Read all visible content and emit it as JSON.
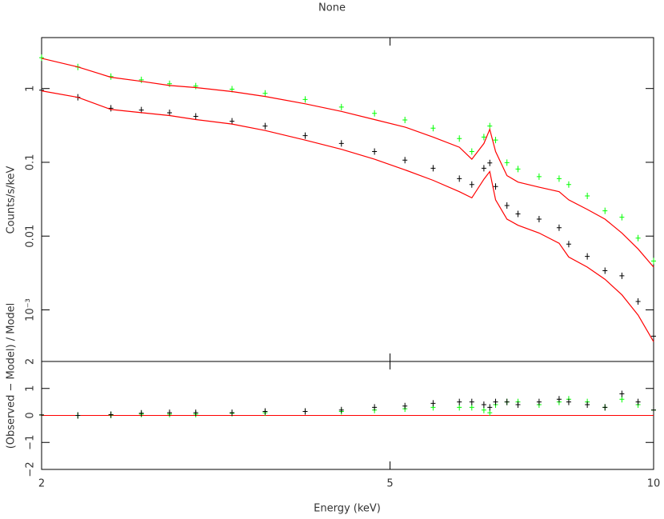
{
  "chart_data": [
    {
      "type": "scatter",
      "title": "None",
      "ylabel": "Counts/s/keV",
      "xlog": true,
      "ylog": true,
      "x": [
        2.0,
        2.2,
        2.4,
        2.6,
        2.8,
        3.0,
        3.3,
        3.6,
        4.0,
        4.4,
        4.8,
        5.2,
        5.6,
        6.0,
        6.2,
        6.4,
        6.5,
        6.6,
        6.8,
        7.0,
        7.4,
        7.8,
        8.0,
        8.4,
        8.8,
        9.2,
        9.6,
        10.0
      ],
      "xlim": [
        2,
        10
      ],
      "xticks": [
        2,
        5,
        10
      ],
      "ylim": [
        0.0002,
        4.9
      ],
      "yticks": [
        1,
        0.1,
        0.01,
        {
          "value": 0.001,
          "label": "10⁻³"
        }
      ],
      "series": [
        {
          "kind": "points",
          "color": "#00ff00",
          "values": [
            2.62,
            1.96,
            1.45,
            1.31,
            1.16,
            1.08,
            0.98,
            0.86,
            0.71,
            0.56,
            0.46,
            0.375,
            0.29,
            0.21,
            0.14,
            0.22,
            0.31,
            0.2,
            0.099,
            0.081,
            0.064,
            0.06,
            0.05,
            0.035,
            0.022,
            0.018,
            0.0094,
            0.0046
          ]
        },
        {
          "kind": "points",
          "color": "#000000",
          "values": [
            0.95,
            0.76,
            0.54,
            0.51,
            0.47,
            0.42,
            0.36,
            0.31,
            0.23,
            0.18,
            0.14,
            0.107,
            0.083,
            0.06,
            0.05,
            0.083,
            0.098,
            0.047,
            0.026,
            0.02,
            0.017,
            0.013,
            0.0078,
            0.0053,
            0.0034,
            0.0029,
            0.0013,
            0.00044
          ]
        },
        {
          "kind": "line",
          "color": "#ff0000",
          "values": [
            2.57,
            1.96,
            1.42,
            1.25,
            1.1,
            1.03,
            0.91,
            0.78,
            0.62,
            0.49,
            0.38,
            0.3,
            0.22,
            0.16,
            0.11,
            0.18,
            0.28,
            0.14,
            0.066,
            0.054,
            0.046,
            0.04,
            0.031,
            0.023,
            0.017,
            0.011,
            0.0067,
            0.0038
          ]
        },
        {
          "kind": "line",
          "color": "#ff0000",
          "values": [
            0.93,
            0.76,
            0.52,
            0.47,
            0.43,
            0.38,
            0.33,
            0.27,
            0.2,
            0.15,
            0.11,
            0.079,
            0.057,
            0.04,
            0.033,
            0.059,
            0.075,
            0.031,
            0.017,
            0.014,
            0.011,
            0.008,
            0.0052,
            0.0038,
            0.0026,
            0.0016,
            0.00085,
            0.00037
          ]
        }
      ]
    },
    {
      "type": "scatter",
      "xlabel": "Energy (keV)",
      "ylabel": "(Observed − Model) / Model",
      "xlog": true,
      "x": [
        2.0,
        2.2,
        2.4,
        2.6,
        2.8,
        3.0,
        3.3,
        3.6,
        4.0,
        4.4,
        4.8,
        5.2,
        5.6,
        6.0,
        6.2,
        6.4,
        6.5,
        6.6,
        6.8,
        7.0,
        7.4,
        7.8,
        8.0,
        8.4,
        8.8,
        9.2,
        9.6,
        10.0
      ],
      "xlim": [
        2,
        10
      ],
      "xticks": [
        2,
        5,
        10
      ],
      "ylim": [
        -2,
        2
      ],
      "yticks": [
        2,
        1,
        0,
        {
          "value": -1,
          "label": "−1"
        },
        {
          "value": -2,
          "label": "−2"
        }
      ],
      "reference_line": {
        "value": 0,
        "color": "#ff0000"
      },
      "series": [
        {
          "kind": "points",
          "color": "#00ff00",
          "values": [
            0.02,
            0.0,
            0.02,
            0.05,
            0.05,
            0.05,
            0.08,
            0.1,
            0.15,
            0.15,
            0.2,
            0.25,
            0.3,
            0.3,
            0.3,
            0.2,
            0.1,
            0.4,
            0.5,
            0.5,
            0.4,
            0.5,
            0.6,
            0.5,
            0.3,
            0.6,
            0.4,
            0.2
          ]
        },
        {
          "kind": "points",
          "color": "#000000",
          "values": [
            0.02,
            0.0,
            0.03,
            0.08,
            0.1,
            0.1,
            0.1,
            0.15,
            0.15,
            0.2,
            0.3,
            0.35,
            0.45,
            0.5,
            0.5,
            0.4,
            0.3,
            0.5,
            0.5,
            0.4,
            0.5,
            0.6,
            0.5,
            0.4,
            0.3,
            0.8,
            0.5,
            0.2
          ]
        }
      ]
    }
  ]
}
